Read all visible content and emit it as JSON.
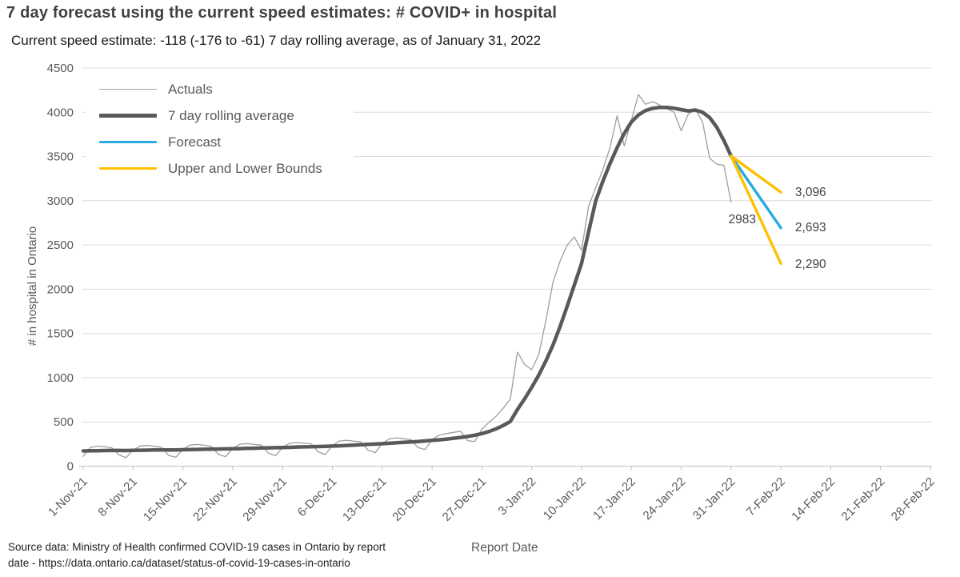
{
  "header": {
    "title": "7 day forecast using the current speed estimates: # COVID+ in hospital",
    "subtitle": "Current speed estimate: -118 (-176 to -61) 7 day rolling average, as of January 31, 2022"
  },
  "footer": {
    "source_line1": "Source data: Ministry of Health confirmed COVID-19 cases in Ontario by report",
    "source_line2": "date - https://data.ontario.ca/dataset/status-of-covid-19-cases-in-ontario"
  },
  "colors": {
    "actuals": "#9E9E9E",
    "rolling_average": "#595959",
    "forecast": "#27A9E1",
    "bounds": "#FFC000",
    "gridline": "#DCDCDC",
    "axis": "#C9C9C9",
    "tick_text": "#595959"
  },
  "chart_data": {
    "type": "line",
    "title": "7 day forecast using the current speed estimates: # COVID+ in hospital",
    "xlabel": "Report Date",
    "ylabel": "# in hospital in Ontario",
    "ylim": [
      0,
      4500
    ],
    "y_tick_step": 500,
    "y_tick_labels": [
      "0",
      "500",
      "1000",
      "1500",
      "2000",
      "2500",
      "3000",
      "3500",
      "4000",
      "4500"
    ],
    "x_tick_labels": [
      "1-Nov-21",
      "8-Nov-21",
      "15-Nov-21",
      "22-Nov-21",
      "29-Nov-21",
      "6-Dec-21",
      "13-Dec-21",
      "20-Dec-21",
      "27-Dec-21",
      "3-Jan-22",
      "10-Jan-22",
      "17-Jan-22",
      "24-Jan-22",
      "31-Jan-22",
      "7-Feb-22",
      "14-Feb-22",
      "21-Feb-22",
      "28-Feb-22"
    ],
    "x_days_total": 119,
    "grid": "horizontal",
    "legend": {
      "position": "top-left",
      "items": [
        {
          "key": "actuals",
          "label": "Actuals",
          "color": "#9E9E9E",
          "weight": 1.5
        },
        {
          "key": "rolling",
          "label": "7 day rolling average",
          "color": "#595959",
          "weight": 4.5
        },
        {
          "key": "forecast",
          "label": "Forecast",
          "color": "#27A9E1",
          "weight": 3.5
        },
        {
          "key": "bounds",
          "label": "Upper and Lower Bounds",
          "color": "#FFC000",
          "weight": 3.5
        }
      ]
    },
    "series": [
      {
        "key": "actuals",
        "name": "Actuals",
        "color": "#9E9E9E",
        "width": 1.3,
        "start_day": 0,
        "values": [
          110,
          212,
          226,
          220,
          208,
          130,
          95,
          182,
          228,
          235,
          224,
          214,
          122,
          100,
          190,
          238,
          245,
          236,
          224,
          132,
          108,
          200,
          248,
          255,
          246,
          238,
          148,
          118,
          214,
          258,
          268,
          260,
          254,
          162,
          132,
          232,
          284,
          292,
          282,
          274,
          182,
          152,
          258,
          308,
          320,
          310,
          302,
          212,
          188,
          298,
          352,
          368,
          382,
          395,
          288,
          278,
          420,
          495,
          565,
          655,
          760,
          1290,
          1150,
          1090,
          1262,
          1650,
          2080,
          2320,
          2500,
          2590,
          2440,
          2940,
          3150,
          3350,
          3600,
          3960,
          3620,
          3910,
          4200,
          4090,
          4120,
          4080,
          4040,
          4000,
          3790,
          3980,
          4030,
          3890,
          3480,
          3415,
          3400,
          2983
        ]
      },
      {
        "key": "rolling",
        "name": "7 day rolling average",
        "color": "#595959",
        "width": 4.5,
        "start_day": 0,
        "values": [
          172,
          174,
          175,
          176,
          177,
          177,
          176,
          178,
          180,
          181,
          183,
          184,
          184,
          183,
          185,
          187,
          189,
          191,
          193,
          194,
          195,
          196,
          198,
          201,
          203,
          205,
          207,
          209,
          211,
          213,
          216,
          218,
          220,
          222,
          224,
          227,
          230,
          234,
          238,
          242,
          246,
          250,
          254,
          259,
          264,
          269,
          274,
          279,
          285,
          291,
          298,
          306,
          315,
          325,
          336,
          350,
          368,
          392,
          422,
          460,
          505,
          640,
          760,
          890,
          1030,
          1190,
          1370,
          1580,
          1810,
          2050,
          2290,
          2650,
          3000,
          3220,
          3420,
          3600,
          3760,
          3890,
          3970,
          4020,
          4045,
          4055,
          4055,
          4045,
          4030,
          4015,
          4025,
          4000,
          3940,
          3830,
          3680,
          3506
        ]
      },
      {
        "key": "forecast",
        "name": "Forecast",
        "color": "#27A9E1",
        "width": 3.4,
        "days": [
          91,
          98
        ],
        "values": [
          3506,
          2693
        ]
      },
      {
        "key": "upper-bound",
        "name": "Upper Bound",
        "color": "#FFC000",
        "width": 3.4,
        "days": [
          91,
          98
        ],
        "values": [
          3506,
          3096
        ]
      },
      {
        "key": "lower-bound",
        "name": "Lower Bound",
        "color": "#FFC000",
        "width": 3.4,
        "days": [
          91,
          98
        ],
        "values": [
          3506,
          2290
        ]
      }
    ],
    "annotations": [
      {
        "text": "2983",
        "day": 94.5,
        "value": 2790,
        "anchor": "end"
      },
      {
        "text": "3,096",
        "day": 100,
        "value": 3096,
        "anchor": "start"
      },
      {
        "text": "2,693",
        "day": 100,
        "value": 2698,
        "anchor": "start"
      },
      {
        "text": "2,290",
        "day": 100,
        "value": 2285,
        "anchor": "start"
      }
    ]
  }
}
